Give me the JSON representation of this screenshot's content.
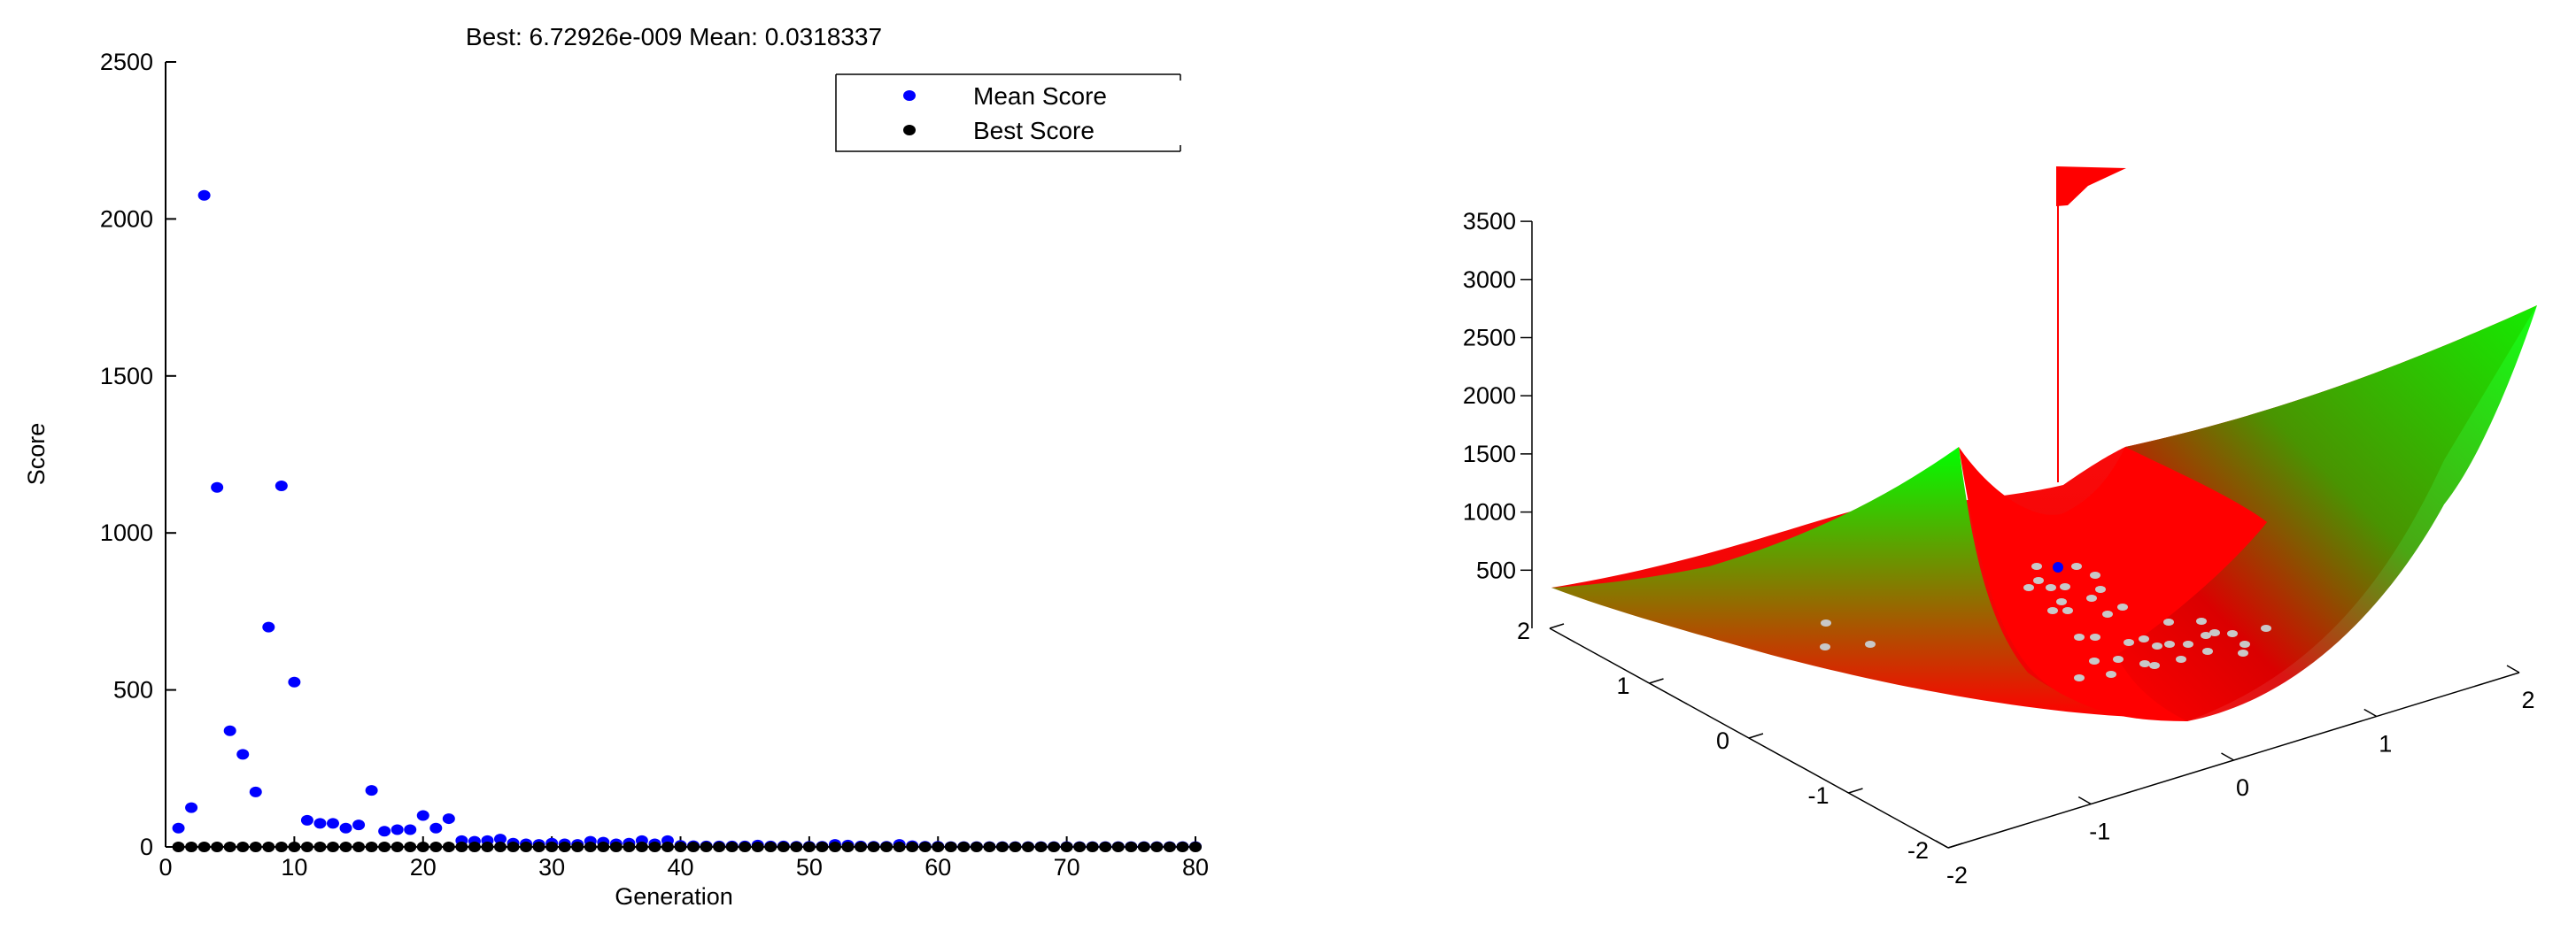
{
  "chart_data": [
    {
      "type": "scatter",
      "title": "Best: 6.72926e-009 Mean: 0.0318337",
      "xlabel": "Generation",
      "ylabel": "Score",
      "xlim": [
        0,
        80
      ],
      "ylim": [
        0,
        2500
      ],
      "xticks": [
        0,
        10,
        20,
        30,
        40,
        50,
        60,
        70,
        80
      ],
      "yticks": [
        0,
        500,
        1000,
        1500,
        2000,
        2500
      ],
      "grid": false,
      "legend": "top-right",
      "series": [
        {
          "name": "Mean Score",
          "color": "#0000ff",
          "x": [
            1,
            2,
            3,
            4,
            5,
            6,
            7,
            8,
            9,
            10,
            11,
            12,
            13,
            14,
            15,
            16,
            17,
            18,
            19,
            20,
            21,
            22,
            23,
            24,
            25,
            26,
            27,
            28,
            29,
            30,
            31,
            32,
            33,
            34,
            35,
            36,
            37,
            38,
            39,
            40,
            41,
            42,
            43,
            44,
            45,
            46,
            47,
            48,
            49,
            50,
            51,
            52,
            53,
            54,
            55,
            56,
            57,
            58,
            59,
            60,
            61,
            62,
            63,
            64,
            65,
            66,
            67,
            68,
            69,
            70,
            71,
            72,
            73,
            74,
            75,
            76,
            77,
            78,
            79,
            80
          ],
          "y": [
            60,
            125,
            2075,
            1145,
            370,
            295,
            175,
            700,
            1150,
            525,
            85,
            75,
            75,
            60,
            70,
            180,
            50,
            55,
            55,
            100,
            60,
            90,
            20,
            18,
            20,
            25,
            12,
            10,
            8,
            12,
            10,
            8,
            18,
            15,
            10,
            12,
            20,
            10,
            20,
            5,
            4,
            3,
            3,
            3,
            3,
            6,
            3,
            3,
            2,
            2,
            2,
            8,
            6,
            3,
            2,
            2,
            8,
            4,
            2,
            2,
            1,
            1,
            1,
            1,
            1,
            1,
            1,
            1,
            1,
            1,
            1,
            1,
            1,
            1,
            1,
            1,
            1,
            1,
            1,
            1
          ]
        },
        {
          "name": "Best Score",
          "color": "#000000",
          "x": [
            1,
            2,
            3,
            4,
            5,
            6,
            7,
            8,
            9,
            10,
            11,
            12,
            13,
            14,
            15,
            16,
            17,
            18,
            19,
            20,
            21,
            22,
            23,
            24,
            25,
            26,
            27,
            28,
            29,
            30,
            31,
            32,
            33,
            34,
            35,
            36,
            37,
            38,
            39,
            40,
            41,
            42,
            43,
            44,
            45,
            46,
            47,
            48,
            49,
            50,
            51,
            52,
            53,
            54,
            55,
            56,
            57,
            58,
            59,
            60,
            61,
            62,
            63,
            64,
            65,
            66,
            67,
            68,
            69,
            70,
            71,
            72,
            73,
            74,
            75,
            76,
            77,
            78,
            79,
            80
          ],
          "y": [
            0,
            0,
            0,
            0,
            0,
            0,
            0,
            0,
            0,
            0,
            0,
            0,
            0,
            0,
            0,
            0,
            0,
            0,
            0,
            0,
            0,
            0,
            0,
            0,
            0,
            0,
            0,
            0,
            0,
            0,
            0,
            0,
            0,
            0,
            0,
            0,
            0,
            0,
            0,
            0,
            0,
            0,
            0,
            0,
            0,
            0,
            0,
            0,
            0,
            0,
            0,
            0,
            0,
            0,
            0,
            0,
            0,
            0,
            0,
            0,
            0,
            0,
            0,
            0,
            0,
            0,
            0,
            0,
            0,
            0,
            0,
            0,
            0,
            0,
            0,
            0,
            0,
            0,
            0,
            0
          ]
        }
      ]
    },
    {
      "type": "surface",
      "title": "",
      "xlim": [
        -2,
        2
      ],
      "ylim": [
        -2,
        2
      ],
      "zlim": [
        0,
        3500
      ],
      "xticks": [
        -2,
        -1,
        0,
        1,
        2
      ],
      "yticks": [
        -2,
        -1,
        0,
        1,
        2
      ],
      "zticks": [
        500,
        1000,
        1500,
        2000,
        2500,
        3000,
        3500
      ],
      "colors": {
        "low": "#ff0000",
        "high": "#00ff00",
        "points": "#c8c8c8",
        "best": "#0000ff",
        "flag": "#ff0000"
      }
    }
  ]
}
